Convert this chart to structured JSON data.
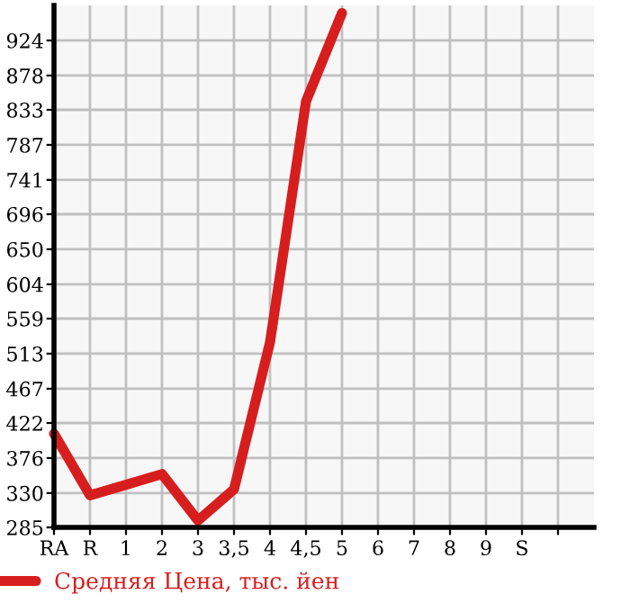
{
  "chart_data": {
    "type": "line",
    "categories": [
      "RA",
      "R",
      "1",
      "2",
      "3",
      "3,5",
      "4",
      "4,5",
      "5",
      "6",
      "7",
      "8",
      "9",
      "S",
      null
    ],
    "series": [
      {
        "name": "Средняя Цена, тыс. йен",
        "color": "#d71e1e",
        "values": [
          408,
          327,
          341,
          355,
          294,
          335,
          528,
          844,
          960,
          null,
          null,
          null,
          null,
          null,
          null
        ]
      }
    ],
    "ylim": [
      285,
      970
    ],
    "yticks": [
      285,
      330,
      376,
      422,
      467,
      513,
      559,
      604,
      650,
      696,
      741,
      787,
      833,
      878,
      924
    ],
    "grid": true,
    "legend": "bottom",
    "marker": "none",
    "line_style": "solid"
  }
}
